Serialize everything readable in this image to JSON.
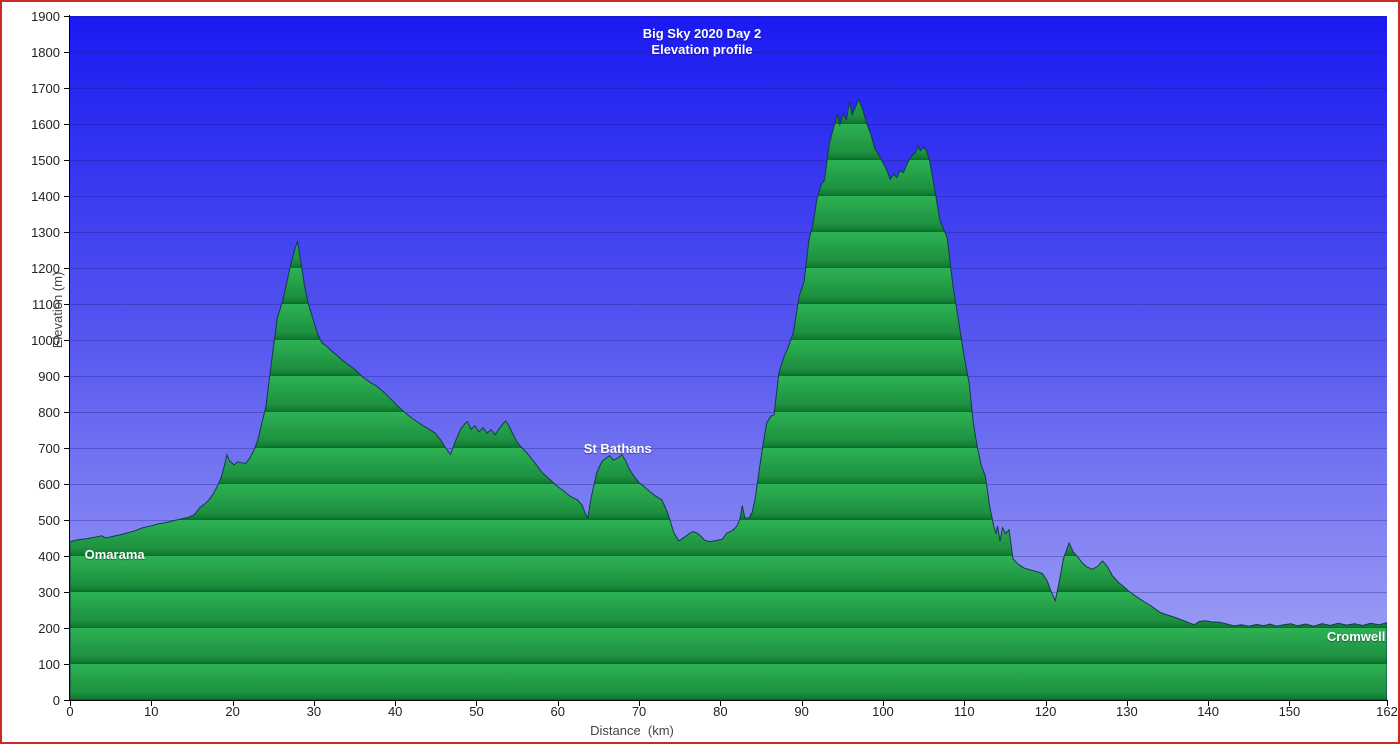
{
  "title": {
    "line1": "Big Sky 2020 Day 2",
    "line2": "Elevation profile"
  },
  "axes": {
    "x_label": "Distance  (km)",
    "y_label": "Elevation (m)",
    "x_ticks": [
      0,
      10,
      20,
      30,
      40,
      50,
      60,
      70,
      80,
      90,
      100,
      110,
      120,
      130,
      140,
      150,
      162
    ],
    "y_ticks": [
      0,
      100,
      200,
      300,
      400,
      500,
      600,
      700,
      800,
      900,
      1000,
      1100,
      1200,
      1300,
      1400,
      1500,
      1600,
      1700,
      1800,
      1900
    ]
  },
  "annotations": [
    {
      "text": "Omarama",
      "km": 1.8,
      "label_top_elevation": 425,
      "align": "left"
    },
    {
      "text": "St Bathans",
      "km": 63.2,
      "label_top_elevation": 719,
      "align": "left"
    },
    {
      "text": "Cromwell",
      "km": 161.8,
      "label_top_elevation": 197,
      "align": "right"
    }
  ],
  "colors": {
    "frame_border": "#cc2929",
    "sky_top": "#1a1af2",
    "sky_mid": "#5353ef",
    "sky_bottom": "#a9a9f6",
    "hill_band_light": "#2eb254",
    "hill_band_mid": "#1d9040",
    "hill_band_dark": "#117a31",
    "hill_band_line": "#0c682a",
    "hill_outline": "#123a4e",
    "axis_text": "#222222",
    "axis_title_text": "#444444",
    "title_text": "#ffffff",
    "annotation_text": "#ffffff"
  },
  "chart_data": {
    "type": "area",
    "title": "Big Sky 2020 Day 2 Elevation profile",
    "xlabel": "Distance (km)",
    "ylabel": "Elevation (m)",
    "x_range": [
      0,
      162
    ],
    "y_range": [
      0,
      1900
    ],
    "x_tick_step": 10,
    "y_tick_step": 100,
    "grid": true,
    "legend": false,
    "series_name": "Elevation",
    "points": [
      [
        0,
        440
      ],
      [
        1,
        445
      ],
      [
        2,
        448
      ],
      [
        3,
        452
      ],
      [
        3.9,
        456
      ],
      [
        4.4,
        450
      ],
      [
        5,
        453
      ],
      [
        6,
        458
      ],
      [
        7,
        464
      ],
      [
        8,
        470
      ],
      [
        8.9,
        478
      ],
      [
        10,
        484
      ],
      [
        11,
        490
      ],
      [
        11.7,
        492
      ],
      [
        12.5,
        497
      ],
      [
        13.5,
        502
      ],
      [
        14.5,
        507
      ],
      [
        15.3,
        515
      ],
      [
        16,
        535
      ],
      [
        16.6,
        545
      ],
      [
        17.1,
        556
      ],
      [
        17.6,
        572
      ],
      [
        18.1,
        592
      ],
      [
        18.6,
        618
      ],
      [
        19,
        652
      ],
      [
        19.3,
        681
      ],
      [
        19.6,
        665
      ],
      [
        20.2,
        653
      ],
      [
        20.6,
        661
      ],
      [
        21.1,
        659
      ],
      [
        21.6,
        657
      ],
      [
        22.1,
        672
      ],
      [
        22.6,
        692
      ],
      [
        23.1,
        722
      ],
      [
        23.6,
        770
      ],
      [
        24.1,
        815
      ],
      [
        24.6,
        905
      ],
      [
        25.1,
        995
      ],
      [
        25.5,
        1062
      ],
      [
        25.8,
        1082
      ],
      [
        26.2,
        1112
      ],
      [
        26.6,
        1152
      ],
      [
        27.1,
        1205
      ],
      [
        27.6,
        1248
      ],
      [
        28,
        1275
      ],
      [
        28.4,
        1215
      ],
      [
        28.9,
        1144
      ],
      [
        29.4,
        1094
      ],
      [
        30,
        1050
      ],
      [
        30.5,
        1014
      ],
      [
        31,
        992
      ],
      [
        31.6,
        982
      ],
      [
        32.2,
        969
      ],
      [
        32.8,
        958
      ],
      [
        33.5,
        944
      ],
      [
        34.2,
        932
      ],
      [
        35.1,
        917
      ],
      [
        36,
        897
      ],
      [
        37,
        881
      ],
      [
        37.6,
        874
      ],
      [
        38.6,
        855
      ],
      [
        39.6,
        833
      ],
      [
        40.6,
        810
      ],
      [
        41.7,
        789
      ],
      [
        42.5,
        776
      ],
      [
        43.3,
        764
      ],
      [
        44.1,
        753
      ],
      [
        44.9,
        742
      ],
      [
        45.6,
        722
      ],
      [
        46.2,
        700
      ],
      [
        46.8,
        682
      ],
      [
        47.4,
        718
      ],
      [
        48,
        750
      ],
      [
        48.6,
        768
      ],
      [
        48.9,
        773
      ],
      [
        49.3,
        752
      ],
      [
        49.8,
        762
      ],
      [
        50.3,
        745
      ],
      [
        50.8,
        756
      ],
      [
        51.3,
        741
      ],
      [
        51.8,
        751
      ],
      [
        52.3,
        737
      ],
      [
        52.8,
        754
      ],
      [
        53.3,
        768
      ],
      [
        53.6,
        775
      ],
      [
        54,
        761
      ],
      [
        54.4,
        742
      ],
      [
        55,
        716
      ],
      [
        55.6,
        700
      ],
      [
        56.2,
        686
      ],
      [
        57.1,
        661
      ],
      [
        58.1,
        631
      ],
      [
        59.1,
        611
      ],
      [
        60,
        592
      ],
      [
        60.6,
        583
      ],
      [
        61.5,
        566
      ],
      [
        62.4,
        556
      ],
      [
        63,
        541
      ],
      [
        63.4,
        517
      ],
      [
        63.7,
        506
      ],
      [
        64.1,
        562
      ],
      [
        64.8,
        631
      ],
      [
        65.4,
        662
      ],
      [
        66,
        673
      ],
      [
        66.4,
        679
      ],
      [
        66.8,
        666
      ],
      [
        67.3,
        671
      ],
      [
        67.9,
        681
      ],
      [
        68.3,
        666
      ],
      [
        68.8,
        641
      ],
      [
        69.4,
        621
      ],
      [
        70,
        604
      ],
      [
        70.5,
        595
      ],
      [
        71.2,
        581
      ],
      [
        72,
        567
      ],
      [
        72.8,
        556
      ],
      [
        73.5,
        521
      ],
      [
        74.3,
        464
      ],
      [
        74.9,
        442
      ],
      [
        75.5,
        451
      ],
      [
        76.1,
        461
      ],
      [
        76.6,
        468
      ],
      [
        77.1,
        464
      ],
      [
        77.6,
        455
      ],
      [
        78.1,
        443
      ],
      [
        78.7,
        440
      ],
      [
        79.5,
        443
      ],
      [
        80.2,
        446
      ],
      [
        80.8,
        464
      ],
      [
        81.5,
        471
      ],
      [
        82,
        482
      ],
      [
        82.4,
        502
      ],
      [
        82.7,
        540
      ],
      [
        83,
        506
      ],
      [
        83.5,
        505
      ],
      [
        83.9,
        521
      ],
      [
        84.3,
        562
      ],
      [
        84.8,
        642
      ],
      [
        85.2,
        702
      ],
      [
        85.7,
        770
      ],
      [
        86.2,
        788
      ],
      [
        86.6,
        792
      ],
      [
        87.2,
        908
      ],
      [
        87.8,
        952
      ],
      [
        88.4,
        983
      ],
      [
        89,
        1022
      ],
      [
        89.7,
        1122
      ],
      [
        90.3,
        1162
      ],
      [
        90.9,
        1278
      ],
      [
        91.4,
        1322
      ],
      [
        91.9,
        1394
      ],
      [
        92.4,
        1432
      ],
      [
        92.8,
        1444
      ],
      [
        93.4,
        1545
      ],
      [
        93.9,
        1588
      ],
      [
        94.4,
        1628
      ],
      [
        94.7,
        1598
      ],
      [
        95.1,
        1628
      ],
      [
        95.5,
        1612
      ],
      [
        95.9,
        1662
      ],
      [
        96.2,
        1626
      ],
      [
        96.6,
        1646
      ],
      [
        97,
        1668
      ],
      [
        97.5,
        1641
      ],
      [
        98,
        1601
      ],
      [
        98.5,
        1572
      ],
      [
        99,
        1532
      ],
      [
        99.5,
        1514
      ],
      [
        100,
        1492
      ],
      [
        100.5,
        1471
      ],
      [
        100.9,
        1446
      ],
      [
        101.3,
        1461
      ],
      [
        101.7,
        1451
      ],
      [
        102.1,
        1471
      ],
      [
        102.5,
        1465
      ],
      [
        103,
        1491
      ],
      [
        103.5,
        1511
      ],
      [
        104,
        1521
      ],
      [
        104.3,
        1538
      ],
      [
        104.6,
        1526
      ],
      [
        105,
        1536
      ],
      [
        105.3,
        1529
      ],
      [
        105.7,
        1502
      ],
      [
        106.1,
        1452
      ],
      [
        106.5,
        1401
      ],
      [
        107,
        1332
      ],
      [
        107.9,
        1284
      ],
      [
        108.6,
        1152
      ],
      [
        109.3,
        1052
      ],
      [
        110,
        952
      ],
      [
        110.6,
        881
      ],
      [
        111.1,
        772
      ],
      [
        111.6,
        702
      ],
      [
        112.1,
        652
      ],
      [
        112.6,
        621
      ],
      [
        113.1,
        541
      ],
      [
        113.6,
        486
      ],
      [
        113.9,
        462
      ],
      [
        114.1,
        484
      ],
      [
        114.4,
        441
      ],
      [
        114.7,
        479
      ],
      [
        115.1,
        462
      ],
      [
        115.5,
        473
      ],
      [
        116,
        392
      ],
      [
        116.7,
        376
      ],
      [
        117.4,
        366
      ],
      [
        118.2,
        361
      ],
      [
        119,
        356
      ],
      [
        119.6,
        351
      ],
      [
        120.2,
        331
      ],
      [
        120.7,
        301
      ],
      [
        121.2,
        276
      ],
      [
        121.7,
        331
      ],
      [
        122.2,
        392
      ],
      [
        122.9,
        436
      ],
      [
        123.4,
        411
      ],
      [
        124,
        396
      ],
      [
        124.5,
        381
      ],
      [
        125,
        371
      ],
      [
        125.7,
        363
      ],
      [
        126.4,
        371
      ],
      [
        127,
        386
      ],
      [
        127.6,
        371
      ],
      [
        128.2,
        346
      ],
      [
        129,
        326
      ],
      [
        129.5,
        317
      ],
      [
        130.3,
        301
      ],
      [
        131.1,
        288
      ],
      [
        131.9,
        276
      ],
      [
        133,
        261
      ],
      [
        134.1,
        243
      ],
      [
        135,
        236
      ],
      [
        136,
        229
      ],
      [
        136.8,
        222
      ],
      [
        137.5,
        216
      ],
      [
        138.3,
        209
      ],
      [
        138.9,
        218
      ],
      [
        139.6,
        220
      ],
      [
        140.4,
        217
      ],
      [
        141.4,
        216
      ],
      [
        142.3,
        211
      ],
      [
        143.2,
        206
      ],
      [
        144.1,
        209
      ],
      [
        145,
        205
      ],
      [
        146,
        210
      ],
      [
        146.8,
        206
      ],
      [
        147.6,
        211
      ],
      [
        148.4,
        205
      ],
      [
        149.3,
        209
      ],
      [
        150.2,
        212
      ],
      [
        151,
        206
      ],
      [
        152,
        211
      ],
      [
        153,
        205
      ],
      [
        154,
        212
      ],
      [
        155,
        207
      ],
      [
        156,
        213
      ],
      [
        157,
        208
      ],
      [
        158,
        212
      ],
      [
        159,
        207
      ],
      [
        160,
        213
      ],
      [
        161,
        209
      ],
      [
        162,
        215
      ]
    ]
  }
}
